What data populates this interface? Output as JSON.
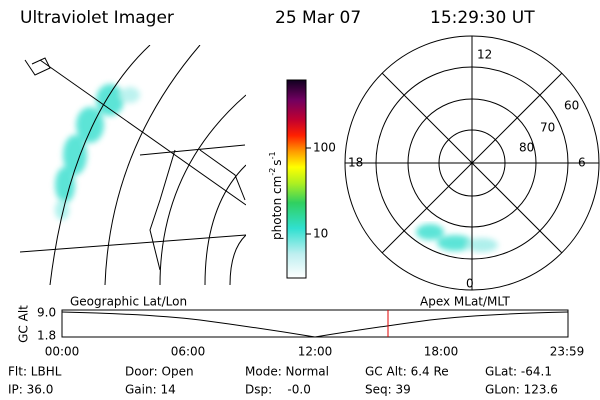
{
  "header": {
    "title": "Ultraviolet Imager",
    "date": "25 Mar 07",
    "time": "15:29:30 UT"
  },
  "colorbar": {
    "ticks": [
      "100",
      "10"
    ],
    "label": [
      "photon cm",
      "-2",
      "s",
      "-1"
    ]
  },
  "polar_plot": {
    "hour_labels": [
      "12",
      "18",
      "6",
      "0"
    ],
    "lat_labels": [
      "60",
      "70",
      "80"
    ]
  },
  "altitude_plot": {
    "left_title": "Geographic Lat/Lon",
    "right_title": "Apex MLat/MLT",
    "y_label": "GC Alt",
    "y_ticks": [
      "9.0",
      "1.8"
    ],
    "x_ticks": [
      "00:00",
      "06:00",
      "12:00",
      "18:00",
      "23:59"
    ]
  },
  "info": {
    "rows": [
      [
        "Flt: LBHL",
        "Door: Open",
        "Mode: Normal",
        "GC Alt: 6.4 Re",
        "GLat: -64.1"
      ],
      [
        "IP: 36.0",
        "Gain: 14",
        "Dsp:    -0.0",
        "Seq: 39",
        "GLon: 123.6"
      ]
    ]
  }
}
